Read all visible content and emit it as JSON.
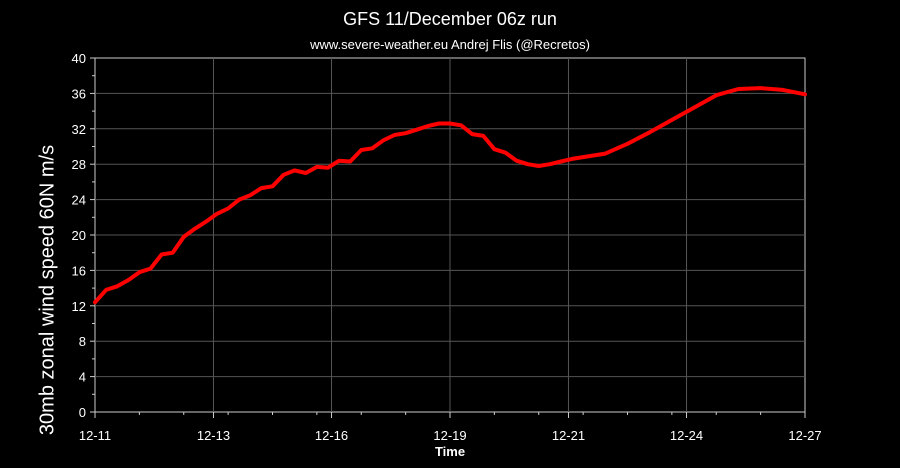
{
  "chart_data": {
    "type": "line",
    "title": "GFS 11/December 06z run",
    "subtitle": "www.severe-weather.eu  Andrej Flis (@Recretos)",
    "xlabel": "Time",
    "ylabel": "30mb zonal wind speed   60N   m/s",
    "ylim": [
      0,
      40
    ],
    "yticks": [
      0,
      4,
      8,
      12,
      16,
      20,
      24,
      28,
      32,
      36,
      40
    ],
    "xlim": [
      0,
      16
    ],
    "xticks": [
      {
        "x": 0,
        "label": "12-11"
      },
      {
        "x": 2.67,
        "label": "12-13"
      },
      {
        "x": 5.33,
        "label": "12-16"
      },
      {
        "x": 8,
        "label": "12-19"
      },
      {
        "x": 10.67,
        "label": "12-21"
      },
      {
        "x": 13.33,
        "label": "12-24"
      },
      {
        "x": 16,
        "label": "12-27"
      }
    ],
    "grid": true,
    "series": [
      {
        "color": "#ff0000",
        "x": [
          0,
          0.25,
          0.5,
          0.75,
          1,
          1.25,
          1.5,
          1.75,
          2,
          2.25,
          2.5,
          2.75,
          3,
          3.25,
          3.5,
          3.75,
          4,
          4.25,
          4.5,
          4.75,
          5,
          5.25,
          5.5,
          5.75,
          6,
          6.25,
          6.5,
          6.75,
          7,
          7.25,
          7.5,
          7.75,
          8,
          8.25,
          8.5,
          8.75,
          9,
          9.25,
          9.5,
          9.75,
          10,
          10.25,
          10.5,
          10.75,
          11,
          11.5,
          12,
          12.5,
          13,
          13.5,
          14,
          14.5,
          15,
          15.5,
          16
        ],
        "values": [
          12.4,
          13.8,
          14.2,
          14.9,
          15.8,
          16.2,
          17.8,
          18.0,
          19.8,
          20.7,
          21.5,
          22.4,
          23.0,
          24.0,
          24.5,
          25.3,
          25.5,
          26.8,
          27.3,
          27.0,
          27.7,
          27.6,
          28.4,
          28.3,
          29.6,
          29.8,
          30.7,
          31.3,
          31.5,
          31.9,
          32.3,
          32.6,
          32.6,
          32.4,
          31.4,
          31.2,
          29.7,
          29.3,
          28.4,
          28.0,
          27.8,
          28.0,
          28.3,
          28.6,
          28.8,
          29.2,
          30.3,
          31.6,
          33.0,
          34.4,
          35.8,
          36.5,
          36.6,
          36.4,
          35.9
        ]
      }
    ]
  }
}
